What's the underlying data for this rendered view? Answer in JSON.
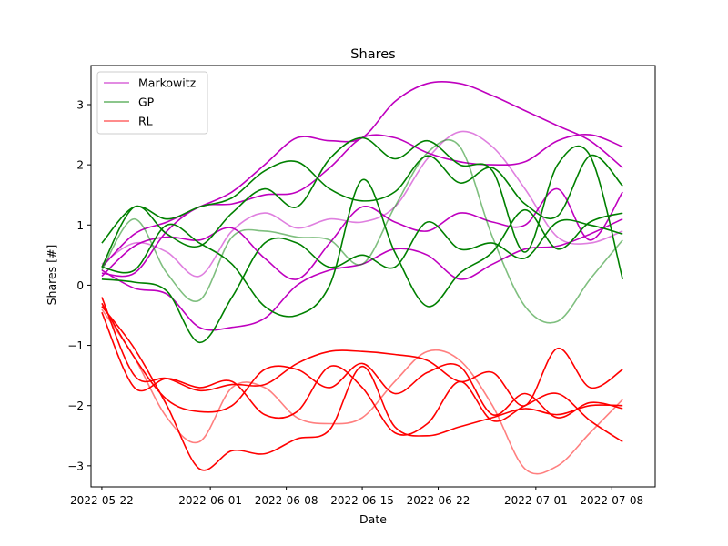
{
  "chart_data": {
    "type": "line",
    "title": "Shares",
    "xlabel": "Date",
    "ylabel": "Shares [#]",
    "x_range": [
      "2022-05-21",
      "2022-07-12"
    ],
    "ylim": [
      -3.35,
      3.65
    ],
    "xticks": [
      "2022-05-22",
      "2022-06-01",
      "2022-06-08",
      "2022-06-15",
      "2022-06-22",
      "2022-07-01",
      "2022-07-08"
    ],
    "yticks": [
      -3,
      -2,
      -1,
      0,
      1,
      2,
      3
    ],
    "grid": false,
    "legend_position": "upper-left",
    "legend": [
      {
        "label": "Markowitz",
        "color": "#bf00bf"
      },
      {
        "label": "GP",
        "color": "#008000"
      },
      {
        "label": "RL",
        "color": "#ff0000"
      }
    ],
    "dates": [
      "2022-05-22",
      "2022-05-25",
      "2022-05-28",
      "2022-05-31",
      "2022-06-03",
      "2022-06-06",
      "2022-06-09",
      "2022-06-12",
      "2022-06-15",
      "2022-06-18",
      "2022-06-21",
      "2022-06-24",
      "2022-06-27",
      "2022-06-30",
      "2022-07-03",
      "2022-07-06",
      "2022-07-09"
    ],
    "series": [
      {
        "group": "Markowitz",
        "alpha": 1.0,
        "values": [
          0.3,
          0.85,
          1.05,
          1.3,
          1.55,
          2.0,
          2.45,
          2.4,
          2.45,
          3.05,
          3.35,
          3.35,
          3.15,
          2.9,
          2.65,
          2.4,
          1.95
        ]
      },
      {
        "group": "Markowitz",
        "alpha": 1.0,
        "values": [
          0.2,
          0.2,
          0.9,
          1.3,
          1.35,
          1.5,
          1.55,
          1.95,
          2.45,
          2.45,
          2.2,
          2.05,
          2.0,
          2.05,
          2.4,
          2.5,
          2.3
        ]
      },
      {
        "group": "Markowitz",
        "alpha": 1.0,
        "values": [
          0.15,
          0.65,
          0.8,
          0.75,
          0.95,
          0.45,
          0.1,
          0.7,
          1.3,
          1.05,
          0.9,
          1.2,
          1.05,
          1.0,
          1.6,
          0.75,
          1.55
        ]
      },
      {
        "group": "Markowitz",
        "alpha": 1.0,
        "values": [
          0.25,
          -0.05,
          -0.15,
          -0.7,
          -0.7,
          -0.55,
          0.0,
          0.25,
          0.35,
          0.6,
          0.5,
          0.1,
          0.35,
          0.6,
          0.65,
          0.85,
          1.1
        ]
      },
      {
        "group": "Markowitz",
        "alpha": 0.5,
        "values": [
          0.35,
          0.7,
          0.55,
          0.15,
          0.9,
          1.2,
          0.95,
          1.1,
          1.05,
          1.3,
          2.1,
          2.55,
          2.3,
          1.6,
          0.8,
          0.7,
          0.9
        ]
      },
      {
        "group": "GP",
        "alpha": 1.0,
        "values": [
          0.7,
          1.3,
          1.1,
          1.3,
          1.45,
          1.9,
          2.05,
          1.6,
          1.4,
          1.55,
          2.15,
          1.7,
          1.95,
          1.35,
          1.15,
          2.15,
          1.65
        ]
      },
      {
        "group": "GP",
        "alpha": 1.0,
        "values": [
          0.3,
          1.3,
          0.85,
          0.65,
          1.2,
          1.6,
          1.3,
          2.1,
          2.45,
          2.1,
          2.4,
          2.0,
          1.9,
          0.55,
          2.0,
          2.15,
          0.1
        ]
      },
      {
        "group": "GP",
        "alpha": 1.0,
        "values": [
          0.1,
          0.05,
          -0.1,
          -0.95,
          -0.2,
          0.7,
          0.7,
          0.3,
          0.5,
          0.3,
          1.05,
          0.6,
          0.7,
          0.45,
          1.05,
          1.0,
          0.85
        ]
      },
      {
        "group": "GP",
        "alpha": 1.0,
        "values": [
          0.3,
          0.25,
          1.0,
          0.7,
          0.35,
          -0.35,
          -0.5,
          0.0,
          1.75,
          0.55,
          -0.35,
          0.2,
          0.55,
          1.25,
          0.6,
          1.05,
          1.2
        ]
      },
      {
        "group": "GP",
        "alpha": 0.5,
        "values": [
          0.25,
          1.1,
          0.2,
          -0.25,
          0.8,
          0.9,
          0.8,
          0.75,
          0.35,
          1.3,
          2.2,
          2.3,
          0.8,
          -0.35,
          -0.6,
          0.1,
          0.75
        ]
      },
      {
        "group": "RL",
        "alpha": 1.0,
        "values": [
          -0.2,
          -1.5,
          -1.55,
          -1.75,
          -1.65,
          -1.65,
          -1.3,
          -1.1,
          -1.1,
          -1.15,
          -1.25,
          -1.6,
          -1.45,
          -2.0,
          -1.05,
          -1.7,
          -1.4
        ]
      },
      {
        "group": "RL",
        "alpha": 1.0,
        "values": [
          -0.3,
          -1.2,
          -1.9,
          -2.1,
          -2.0,
          -1.4,
          -1.4,
          -1.7,
          -1.3,
          -1.8,
          -1.45,
          -1.35,
          -2.15,
          -1.8,
          -2.2,
          -1.95,
          -2.05
        ]
      },
      {
        "group": "RL",
        "alpha": 1.0,
        "values": [
          -0.35,
          -1.05,
          -2.0,
          -3.05,
          -2.75,
          -2.8,
          -2.55,
          -2.4,
          -1.35,
          -2.35,
          -2.5,
          -2.35,
          -2.2,
          -2.05,
          -2.15,
          -2.0,
          -2.0
        ]
      },
      {
        "group": "RL",
        "alpha": 1.0,
        "values": [
          -0.45,
          -1.7,
          -1.55,
          -1.7,
          -1.6,
          -2.15,
          -2.1,
          -1.35,
          -1.7,
          -2.45,
          -2.3,
          -1.6,
          -2.25,
          -2.0,
          -1.8,
          -2.25,
          -2.6
        ]
      },
      {
        "group": "RL",
        "alpha": 0.5,
        "values": [
          -0.4,
          -1.2,
          -2.2,
          -2.6,
          -1.7,
          -1.7,
          -2.2,
          -2.3,
          -2.2,
          -1.6,
          -1.1,
          -1.25,
          -2.0,
          -3.05,
          -3.0,
          -2.45,
          -1.9
        ]
      }
    ]
  }
}
